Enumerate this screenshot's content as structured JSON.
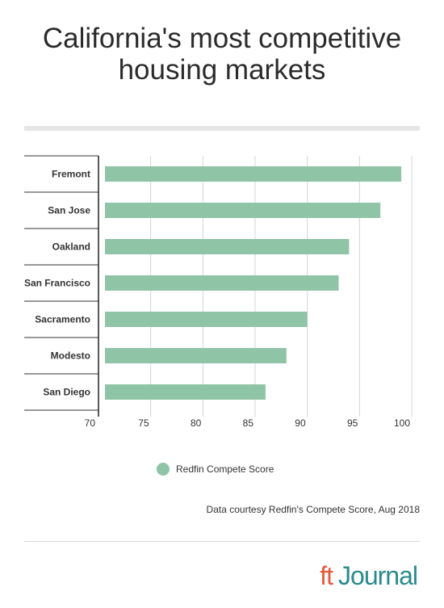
{
  "title": "California's most competitive housing markets",
  "chart_data": {
    "type": "bar",
    "orientation": "horizontal",
    "categories": [
      "Fremont",
      "San Jose",
      "Oakland",
      "San Francisco",
      "Sacramento",
      "Modesto",
      "San Diego"
    ],
    "series": [
      {
        "name": "Redfin Compete Score",
        "values": [
          99,
          97,
          94,
          93,
          90,
          88,
          86
        ]
      }
    ],
    "xlim": [
      70,
      100
    ],
    "xticks": [
      70,
      75,
      80,
      85,
      90,
      95,
      100
    ],
    "grid": true,
    "legend_position": "bottom",
    "bar_color": "#8fc4a7"
  },
  "legend": {
    "label": "Redfin Compete Score",
    "color": "#8fc4a7"
  },
  "source": "Data courtesy Redfin's Compete Score, Aug 2018",
  "brand": {
    "ft": "ft",
    "journal": "Journal",
    "ft_color": "#e8563a",
    "journal_color": "#2a8a8c"
  }
}
